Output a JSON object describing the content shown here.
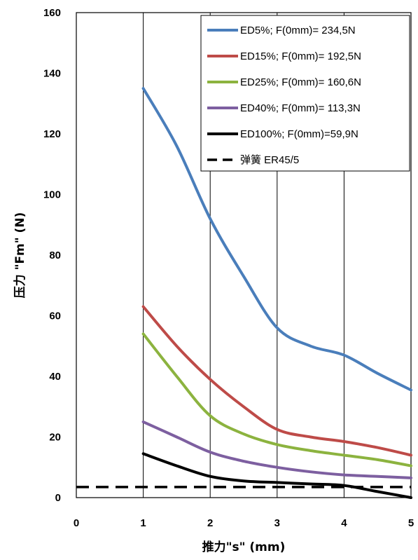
{
  "chart_data": {
    "type": "line",
    "xlabel": "推力\"s\" (mm)",
    "ylabel": "压力 \"Fm\" (N)",
    "xlim": [
      0,
      5
    ],
    "ylim": [
      0,
      160
    ],
    "xticks": [
      "0",
      "1",
      "2",
      "3",
      "4",
      "5"
    ],
    "yticks": [
      "0",
      "20",
      "40",
      "60",
      "80",
      "100",
      "120",
      "140",
      "160"
    ],
    "grid": "vertical",
    "legend_position": "top-right",
    "series": [
      {
        "name": "ED5%; F(0mm)= 234,5N",
        "color": "#4a7ebb",
        "style": "solid",
        "x": [
          1,
          1.5,
          2,
          2.5,
          3,
          3.5,
          4,
          4.5,
          5
        ],
        "y": [
          135,
          116,
          92,
          73,
          56,
          50,
          47,
          41,
          35.5
        ]
      },
      {
        "name": "ED15%; F(0mm)= 192,5N",
        "color": "#be4b48",
        "style": "solid",
        "x": [
          1,
          1.5,
          2,
          2.5,
          3,
          3.5,
          4,
          4.5,
          5
        ],
        "y": [
          63,
          50,
          39,
          30,
          22.5,
          20,
          18.5,
          16.5,
          14
        ]
      },
      {
        "name": "ED25%; F(0mm)= 160,6N",
        "color": "#8cb33f",
        "style": "solid",
        "x": [
          1,
          1.5,
          2,
          2.5,
          3,
          3.5,
          4,
          4.5,
          5
        ],
        "y": [
          54,
          40,
          27,
          21,
          17.5,
          15.5,
          14,
          12.5,
          10.5
        ]
      },
      {
        "name": "ED40%; F(0mm)= 113,3N",
        "color": "#7d5fa0",
        "style": "solid",
        "x": [
          1,
          1.5,
          2,
          2.5,
          3,
          3.5,
          4,
          4.5,
          5
        ],
        "y": [
          25,
          20,
          15,
          12,
          10,
          8.5,
          7.5,
          7,
          6.5
        ]
      },
      {
        "name": "ED100%; F(0mm)=59,9N",
        "color": "#000000",
        "style": "solid",
        "x": [
          1,
          1.5,
          2,
          2.5,
          3,
          3.5,
          4,
          4.5,
          5
        ],
        "y": [
          14.5,
          10.5,
          7,
          5.5,
          5,
          4.5,
          4,
          2,
          0
        ]
      },
      {
        "name": "弹簧    ER45/5",
        "color": "#000000",
        "style": "dashed",
        "x": [
          0,
          5
        ],
        "y": [
          3.5,
          3.5
        ]
      }
    ]
  }
}
